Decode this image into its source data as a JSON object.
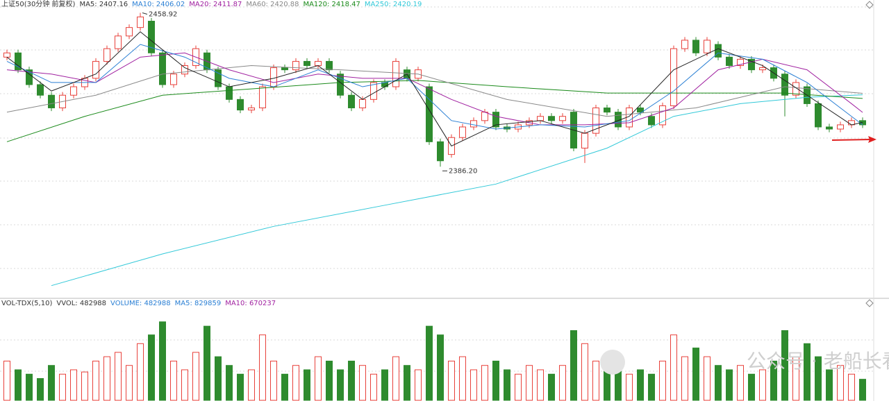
{
  "chart_data": {
    "type": "candlestick",
    "title": "上证50(30分钟 前复权)",
    "indicators": [
      {
        "label": "MA5: 2407.16",
        "color": "#333333"
      },
      {
        "label": "MA10: 2406.02",
        "color": "#2a7fd4"
      },
      {
        "label": "MA20: 2411.87",
        "color": "#a020a0"
      },
      {
        "label": "MA60: 2420.88",
        "color": "#888888"
      },
      {
        "label": "MA120: 2418.47",
        "color": "#1a8a1a"
      },
      {
        "label": "MA250: 2420.19",
        "color": "#30c8d8"
      }
    ],
    "volume_title": "VOL-TDX(5,10)",
    "volume_indicators": [
      {
        "label": "VVOL: 482988",
        "color": "#333333"
      },
      {
        "label": "VOLUME: 482988",
        "color": "#2a7fd4"
      },
      {
        "label": "MA5: 829859",
        "color": "#2a7fd4"
      },
      {
        "label": "MA10: 670237",
        "color": "#a020a0"
      }
    ],
    "watermark": "公众号 · 老船长看盘",
    "up_color": "#e8403a",
    "down_color": "#2e8b2e",
    "ylim": [
      2324,
      2465
    ],
    "vlim": [
      0,
      2100000
    ],
    "open": [
      2438,
      2440,
      2432,
      2425,
      2420,
      2414,
      2420,
      2424,
      2428,
      2436,
      2442,
      2448,
      2452,
      2455,
      2440,
      2425,
      2430,
      2434,
      2440,
      2432,
      2424,
      2418,
      2413,
      2414,
      2424,
      2433,
      2432,
      2436,
      2434,
      2436,
      2430,
      2420,
      2414,
      2418,
      2426,
      2424,
      2432,
      2428,
      2424,
      2398,
      2392,
      2400,
      2405,
      2408,
      2412,
      2405,
      2404,
      2406,
      2408,
      2410,
      2408,
      2412,
      2395,
      2402,
      2414,
      2412,
      2405,
      2414,
      2410,
      2406,
      2415,
      2442,
      2446,
      2440,
      2444,
      2438,
      2434,
      2437,
      2432,
      2433,
      2430,
      2420,
      2424,
      2416,
      2405,
      2404,
      2406,
      2408
    ],
    "high": [
      2441.5,
      2441.5,
      2433.5,
      2426.5,
      2421.5,
      2421.5,
      2425.5,
      2429.5,
      2437.5,
      2443.5,
      2449.5,
      2453.5,
      2458.92,
      2456.5,
      2441.5,
      2431.5,
      2435.5,
      2443.5,
      2441.5,
      2433.5,
      2425.5,
      2419.5,
      2415.5,
      2425.5,
      2434.5,
      2434.5,
      2437.5,
      2437.5,
      2437.5,
      2437.5,
      2431.5,
      2421.5,
      2419.5,
      2427.5,
      2427.5,
      2437.5,
      2433.5,
      2433.5,
      2425.5,
      2399.5,
      2401.5,
      2406.5,
      2409.5,
      2413.5,
      2413.5,
      2406.5,
      2407.5,
      2409.5,
      2411.5,
      2411.5,
      2411.5,
      2413.5,
      2403.5,
      2415.5,
      2415.5,
      2413.5,
      2415.5,
      2415.5,
      2411.5,
      2416.5,
      2443.5,
      2447.5,
      2447.5,
      2447.5,
      2445.5,
      2439.5,
      2438.5,
      2438.5,
      2434.5,
      2434.5,
      2431.5,
      2427.5,
      2425.5,
      2417.5,
      2406.5,
      2407.5,
      2409.5,
      2409.5
    ],
    "low": [
      2436.5,
      2430.5,
      2423.5,
      2418.5,
      2412.5,
      2412.5,
      2418.5,
      2422.5,
      2426.5,
      2434.5,
      2440.5,
      2446.5,
      2450.5,
      2438.5,
      2423.5,
      2423.5,
      2428.5,
      2432.5,
      2430.5,
      2422.5,
      2416.5,
      2411.5,
      2411.5,
      2412.5,
      2422.5,
      2430.5,
      2430.5,
      2432.5,
      2432.5,
      2430.5,
      2418.5,
      2412.5,
      2412.5,
      2416.5,
      2422.5,
      2422.5,
      2426.5,
      2426.5,
      2396.5,
      2386.2,
      2390.5,
      2398.5,
      2403.5,
      2406.5,
      2403.5,
      2402.5,
      2402.5,
      2404.5,
      2406.5,
      2406.5,
      2406.5,
      2393.5,
      2388,
      2400.5,
      2410.5,
      2403.5,
      2403.5,
      2410.5,
      2404.5,
      2404.5,
      2413.5,
      2440.5,
      2438.5,
      2438.5,
      2436.5,
      2432.5,
      2432.5,
      2430.5,
      2430.5,
      2426.5,
      2410,
      2418.5,
      2414.5,
      2403.5,
      2402.5,
      2402.5,
      2404.5,
      2404.5
    ],
    "close": [
      2440,
      2432,
      2425,
      2420,
      2414,
      2420,
      2424,
      2428,
      2436,
      2442,
      2448,
      2452,
      2457,
      2440,
      2425,
      2430,
      2434,
      2442,
      2432,
      2424,
      2418,
      2413,
      2414,
      2424,
      2433,
      2432,
      2436,
      2434,
      2436,
      2432,
      2420,
      2414,
      2418,
      2426,
      2424,
      2436,
      2428,
      2432,
      2398,
      2389,
      2400,
      2405,
      2408,
      2412,
      2405,
      2404,
      2406,
      2408,
      2410,
      2408,
      2410,
      2395,
      2402,
      2414,
      2412,
      2405,
      2414,
      2412,
      2406,
      2415,
      2442,
      2446,
      2440,
      2446,
      2438,
      2434,
      2437,
      2432,
      2433,
      2428,
      2420,
      2426,
      2416,
      2405,
      2404,
      2406,
      2408,
      2406
    ],
    "volume": [
      900000,
      700000,
      600000,
      500000,
      800000,
      600000,
      700000,
      650000,
      900000,
      1000000,
      1100000,
      800000,
      1300000,
      1500000,
      1800000,
      900000,
      700000,
      1100000,
      1700000,
      1000000,
      800000,
      600000,
      700000,
      1500000,
      900000,
      600000,
      800000,
      700000,
      1000000,
      900000,
      700000,
      900000,
      800000,
      600000,
      700000,
      1000000,
      800000,
      700000,
      1700000,
      1500000,
      900000,
      1000000,
      700000,
      800000,
      900000,
      700000,
      600000,
      800000,
      700000,
      600000,
      800000,
      1600000,
      1300000,
      900000,
      700000,
      800000,
      600000,
      700000,
      600000,
      900000,
      1500000,
      1000000,
      1200000,
      1000000,
      800000,
      700000,
      800000,
      600000,
      700000,
      900000,
      1600000,
      1000000,
      1300000,
      1000000,
      700000,
      800000,
      600000,
      482988
    ],
    "lines": [
      {
        "name": "MA250",
        "color": "#30c8d8",
        "x": [
          4,
          14,
          24,
          34,
          44,
          54,
          60,
          66,
          72,
          77
        ],
        "values": [
          2330,
          2345,
          2358,
          2368,
          2378,
          2395,
          2410,
          2416,
          2419,
          2420.19
        ]
      },
      {
        "name": "MA120",
        "color": "#1a8a1a",
        "x": [
          0,
          7,
          14,
          22,
          30,
          37,
          45,
          54,
          62,
          70,
          77
        ],
        "values": [
          2398,
          2410,
          2420,
          2423,
          2426,
          2427,
          2424,
          2421,
          2421,
          2421,
          2418.47
        ]
      },
      {
        "name": "MA60",
        "color": "#888888",
        "x": [
          0,
          8,
          14,
          22,
          30,
          37,
          45,
          54,
          62,
          70,
          77
        ],
        "values": [
          2412,
          2420,
          2430,
          2434,
          2432,
          2430,
          2418,
          2410,
          2414,
          2424,
          2420.88
        ]
      },
      {
        "name": "MA20",
        "color": "#a020a0",
        "x": [
          0,
          4,
          8,
          12,
          16,
          20,
          24,
          28,
          32,
          36,
          40,
          44,
          48,
          52,
          56,
          60,
          64,
          68,
          72,
          76,
          77
        ],
        "values": [
          2432,
          2430,
          2426,
          2438,
          2440,
          2432,
          2426,
          2430,
          2428,
          2428,
          2418,
          2410,
          2406,
          2406,
          2407,
          2414,
          2432,
          2437,
          2432,
          2416,
          2411.87
        ]
      },
      {
        "name": "MA10",
        "color": "#2a7fd4",
        "x": [
          0,
          4,
          8,
          12,
          16,
          20,
          24,
          28,
          32,
          36,
          40,
          44,
          48,
          52,
          56,
          60,
          64,
          68,
          72,
          76,
          77
        ],
        "values": [
          2436,
          2426,
          2426,
          2444,
          2438,
          2428,
          2424,
          2432,
          2424,
          2428,
          2408,
          2404,
          2406,
          2405,
          2408,
          2422,
          2440,
          2437,
          2426,
          2410,
          2406.02
        ]
      },
      {
        "name": "MA5",
        "color": "#222222",
        "x": [
          0,
          4,
          8,
          12,
          16,
          20,
          24,
          28,
          32,
          36,
          40,
          44,
          48,
          52,
          56,
          60,
          64,
          68,
          72,
          76,
          77
        ],
        "values": [
          2438,
          2422,
          2430,
          2450,
          2433,
          2424,
          2428,
          2434,
          2418,
          2430,
          2396,
          2406,
          2408,
          2402,
          2410,
          2432,
          2442,
          2434,
          2420,
          2406,
          2407.16
        ]
      }
    ],
    "annotations": [
      {
        "value": 2458.92,
        "label": "2458.92"
      },
      {
        "value": 2386.2,
        "label": "2386.20"
      }
    ]
  }
}
